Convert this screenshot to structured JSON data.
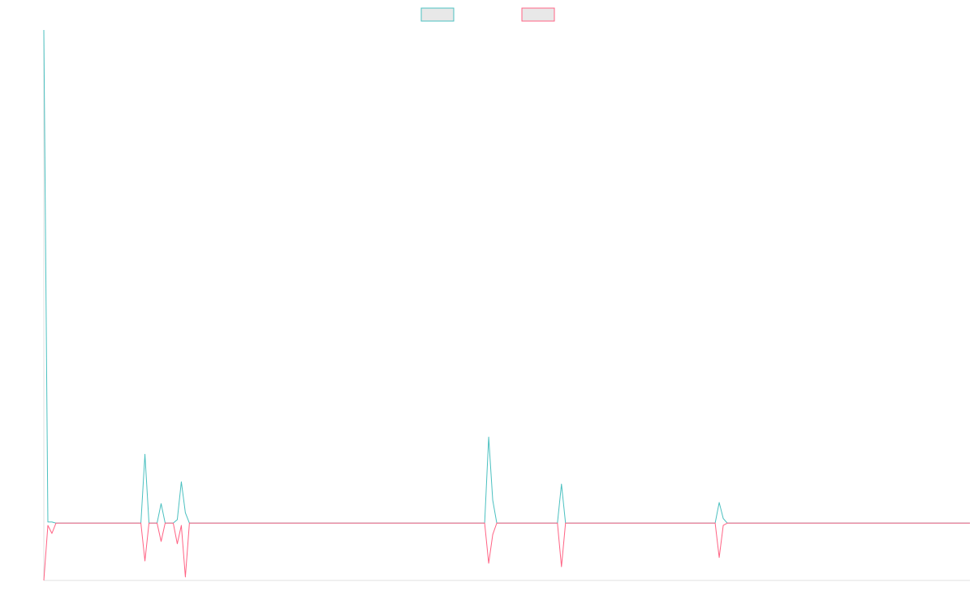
{
  "chart_data": {
    "type": "line",
    "title": "",
    "xlabel": "",
    "ylabel": "",
    "grid": false,
    "legend_placement": "top-center",
    "x_points": 230,
    "ylim": [
      -5,
      43
    ],
    "series": [
      {
        "name": "",
        "color": "#4bc0c0",
        "fill": "#e8e8e8",
        "baseline": 0,
        "values_sparse": [
          [
            0,
            43
          ],
          [
            1,
            0.1
          ],
          [
            2,
            0.1
          ],
          [
            3,
            0
          ],
          [
            24,
            0
          ],
          [
            25,
            6
          ],
          [
            26,
            0
          ],
          [
            28,
            0
          ],
          [
            29,
            1.7
          ],
          [
            30,
            0
          ],
          [
            32,
            0
          ],
          [
            33,
            0.3
          ],
          [
            34,
            3.6
          ],
          [
            35,
            0.9
          ],
          [
            36,
            0
          ],
          [
            109,
            0
          ],
          [
            110,
            7.5
          ],
          [
            111,
            2
          ],
          [
            112,
            0
          ],
          [
            127,
            0
          ],
          [
            128,
            3.4
          ],
          [
            129,
            0
          ],
          [
            166,
            0
          ],
          [
            167,
            1.8
          ],
          [
            168,
            0.4
          ],
          [
            169,
            0
          ],
          [
            229,
            0
          ]
        ]
      },
      {
        "name": "",
        "color": "#ff6384",
        "fill": "#e8e8e8",
        "baseline": 0,
        "values_sparse": [
          [
            0,
            -5
          ],
          [
            1,
            -0.2
          ],
          [
            2,
            -0.9
          ],
          [
            3,
            0
          ],
          [
            24,
            0
          ],
          [
            25,
            -3.3
          ],
          [
            26,
            0
          ],
          [
            28,
            0
          ],
          [
            29,
            -1.6
          ],
          [
            30,
            0
          ],
          [
            32,
            0
          ],
          [
            33,
            -1.8
          ],
          [
            34,
            -0.2
          ],
          [
            35,
            -4.7
          ],
          [
            36,
            0
          ],
          [
            109,
            0
          ],
          [
            110,
            -3.5
          ],
          [
            111,
            -1
          ],
          [
            112,
            0
          ],
          [
            127,
            0
          ],
          [
            128,
            -3.8
          ],
          [
            129,
            0
          ],
          [
            166,
            0
          ],
          [
            167,
            -3
          ],
          [
            168,
            -0.2
          ],
          [
            169,
            0
          ],
          [
            229,
            0
          ]
        ]
      }
    ]
  }
}
